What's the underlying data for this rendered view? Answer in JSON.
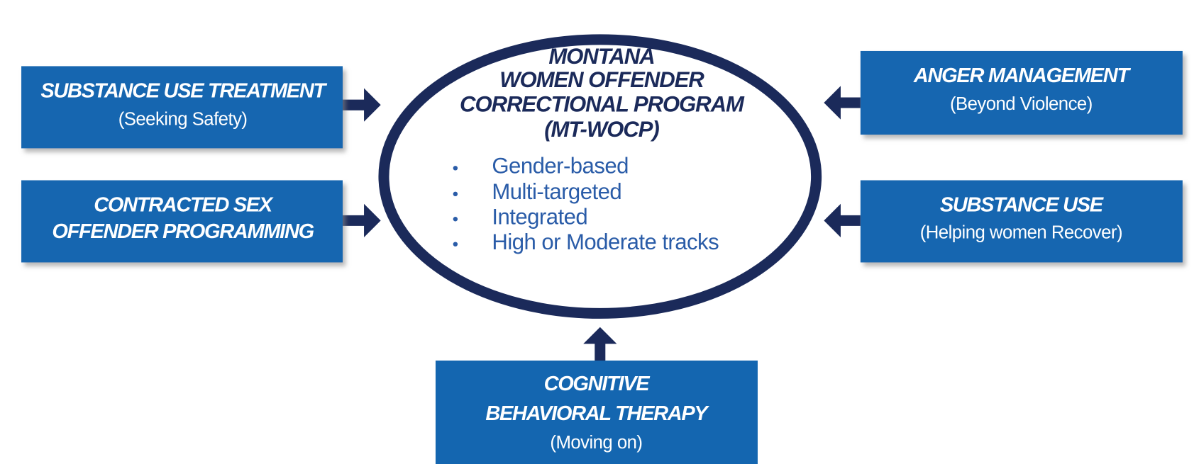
{
  "center": {
    "title": [
      "MONTANA",
      "WOMEN OFFENDER",
      "CORRECTIONAL PROGRAM",
      "(MT-WOCP)"
    ],
    "bullets": [
      "Gender-based",
      "Multi-targeted",
      "Integrated",
      "High or Moderate tracks"
    ]
  },
  "boxes": [
    {
      "title": [
        "SUBSTANCE USE TREATMENT"
      ],
      "subtitle": "(Seeking Safety)"
    },
    {
      "title": [
        "CONTRACTED SEX",
        "OFFENDER PROGRAMMING"
      ]
    },
    {
      "title": [
        "ANGER MANAGEMENT"
      ],
      "subtitle": "(Beyond Violence)"
    },
    {
      "title": [
        "SUBSTANCE USE"
      ],
      "subtitle": "(Helping women Recover)"
    },
    {
      "title": [
        "COGNITIVE",
        "BEHAVIORAL THERAPY"
      ],
      "subtitle": "(Moving on)"
    }
  ]
}
